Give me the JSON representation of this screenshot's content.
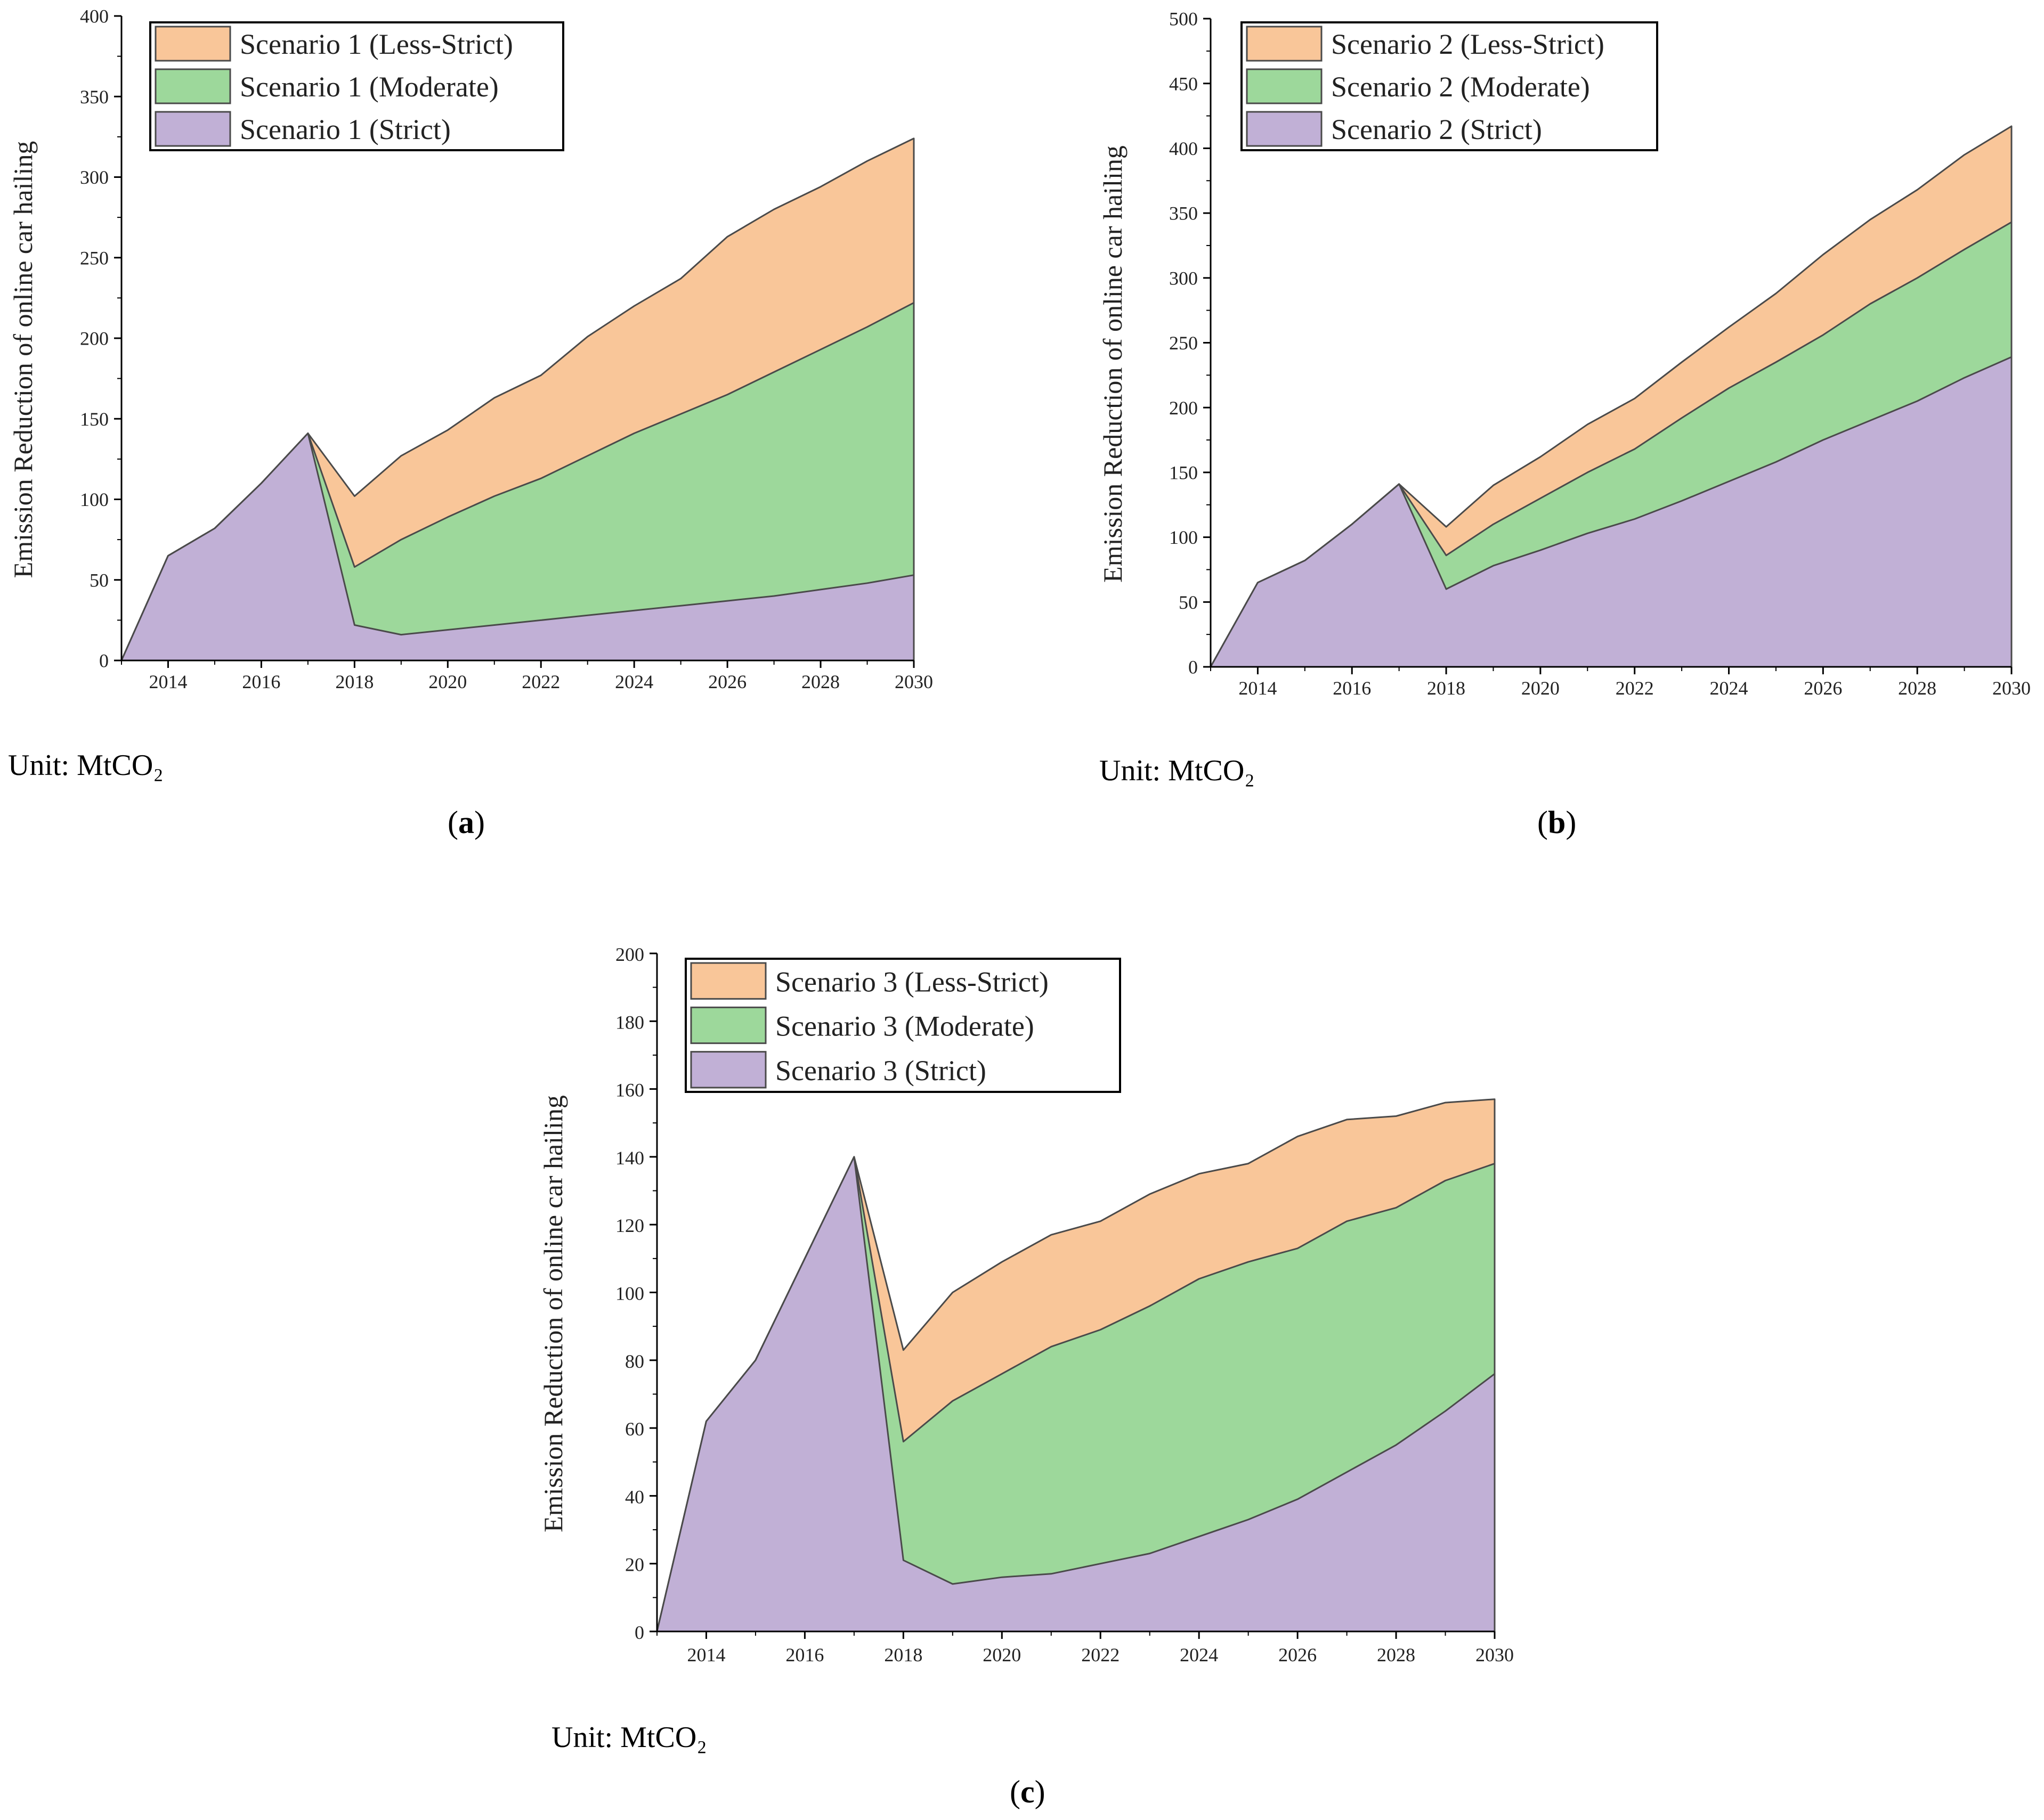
{
  "panels": [
    {
      "unit_text": "Unit: MtCO₂",
      "caption_letter": "a",
      "chart_data": {
        "type": "area",
        "ylabel": "Emission Reduction of online car hailing",
        "ylim": [
          0,
          400
        ],
        "yticks": [
          0,
          50,
          100,
          150,
          200,
          250,
          300,
          350,
          400
        ],
        "xlim": [
          2013,
          2030
        ],
        "xticks": [
          2014,
          2016,
          2018,
          2020,
          2022,
          2024,
          2026,
          2028,
          2030
        ],
        "legend_position": "top-left",
        "x": [
          2013,
          2014,
          2015,
          2016,
          2017,
          2018,
          2019,
          2020,
          2021,
          2022,
          2023,
          2024,
          2025,
          2026,
          2027,
          2028,
          2029,
          2030
        ],
        "series": [
          {
            "name": "Scenario 1 (Less-Strict)",
            "color": "#f9c699",
            "values": [
              0,
              65,
              82,
              110,
              141,
              102,
              127,
              143,
              163,
              177,
              201,
              220,
              237,
              263,
              280,
              294,
              310,
              324
            ]
          },
          {
            "name": "Scenario 1 (Moderate)",
            "color": "#9dd89b",
            "values": [
              0,
              65,
              82,
              110,
              141,
              58,
              75,
              89,
              102,
              113,
              127,
              141,
              153,
              165,
              179,
              193,
              207,
              222
            ]
          },
          {
            "name": "Scenario 1 (Strict)",
            "color": "#c1b0d6",
            "values": [
              0,
              65,
              82,
              110,
              141,
              22,
              16,
              19,
              22,
              25,
              28,
              31,
              34,
              37,
              40,
              44,
              48,
              53
            ]
          }
        ]
      }
    },
    {
      "unit_text": "Unit: MtCO₂",
      "caption_letter": "b",
      "chart_data": {
        "type": "area",
        "ylabel": "Emission Reduction of online car hailing",
        "ylim": [
          0,
          500
        ],
        "yticks": [
          0,
          50,
          100,
          150,
          200,
          250,
          300,
          350,
          400,
          450,
          500
        ],
        "xlim": [
          2013,
          2030
        ],
        "xticks": [
          2014,
          2016,
          2018,
          2020,
          2022,
          2024,
          2026,
          2028,
          2030
        ],
        "legend_position": "top-left",
        "x": [
          2013,
          2014,
          2015,
          2016,
          2017,
          2018,
          2019,
          2020,
          2021,
          2022,
          2023,
          2024,
          2025,
          2026,
          2027,
          2028,
          2029,
          2030
        ],
        "series": [
          {
            "name": "Scenario 2 (Less-Strict)",
            "color": "#f9c699",
            "values": [
              0,
              65,
              82,
              110,
              141,
              108,
              140,
              162,
              187,
              207,
              235,
              262,
              288,
              318,
              345,
              368,
              395,
              417
            ]
          },
          {
            "name": "Scenario 2 (Moderate)",
            "color": "#9dd89b",
            "values": [
              0,
              65,
              82,
              110,
              141,
              86,
              110,
              130,
              150,
              168,
              192,
              215,
              235,
              256,
              280,
              300,
              322,
              343
            ]
          },
          {
            "name": "Scenario 2 (Strict)",
            "color": "#c1b0d6",
            "values": [
              0,
              65,
              82,
              110,
              141,
              60,
              78,
              90,
              103,
              114,
              128,
              143,
              158,
              175,
              190,
              205,
              223,
              239
            ]
          }
        ]
      }
    },
    {
      "unit_text": "Unit: MtCO₂",
      "caption_letter": "c",
      "chart_data": {
        "type": "area",
        "ylabel": "Emission Reduction of online car hailing",
        "ylim": [
          0,
          200
        ],
        "yticks": [
          0,
          20,
          40,
          60,
          80,
          100,
          120,
          140,
          160,
          180,
          200
        ],
        "xlim": [
          2013,
          2030
        ],
        "xticks": [
          2014,
          2016,
          2018,
          2020,
          2022,
          2024,
          2026,
          2028,
          2030
        ],
        "legend_position": "top-left",
        "x": [
          2013,
          2014,
          2015,
          2016,
          2017,
          2018,
          2019,
          2020,
          2021,
          2022,
          2023,
          2024,
          2025,
          2026,
          2027,
          2028,
          2029,
          2030
        ],
        "series": [
          {
            "name": "Scenario 3 (Less-Strict)",
            "color": "#f9c699",
            "values": [
              0,
              62,
              80,
              110,
              140,
              83,
              100,
              109,
              117,
              121,
              129,
              135,
              138,
              146,
              151,
              152,
              156,
              157
            ]
          },
          {
            "name": "Scenario 3 (Moderate)",
            "color": "#9dd89b",
            "values": [
              0,
              62,
              80,
              110,
              140,
              56,
              68,
              76,
              84,
              89,
              96,
              104,
              109,
              113,
              121,
              125,
              133,
              138
            ]
          },
          {
            "name": "Scenario 3 (Strict)",
            "color": "#c1b0d6",
            "values": [
              0,
              62,
              80,
              110,
              140,
              21,
              14,
              16,
              17,
              20,
              23,
              28,
              33,
              39,
              47,
              55,
              65,
              76
            ]
          }
        ]
      }
    }
  ]
}
